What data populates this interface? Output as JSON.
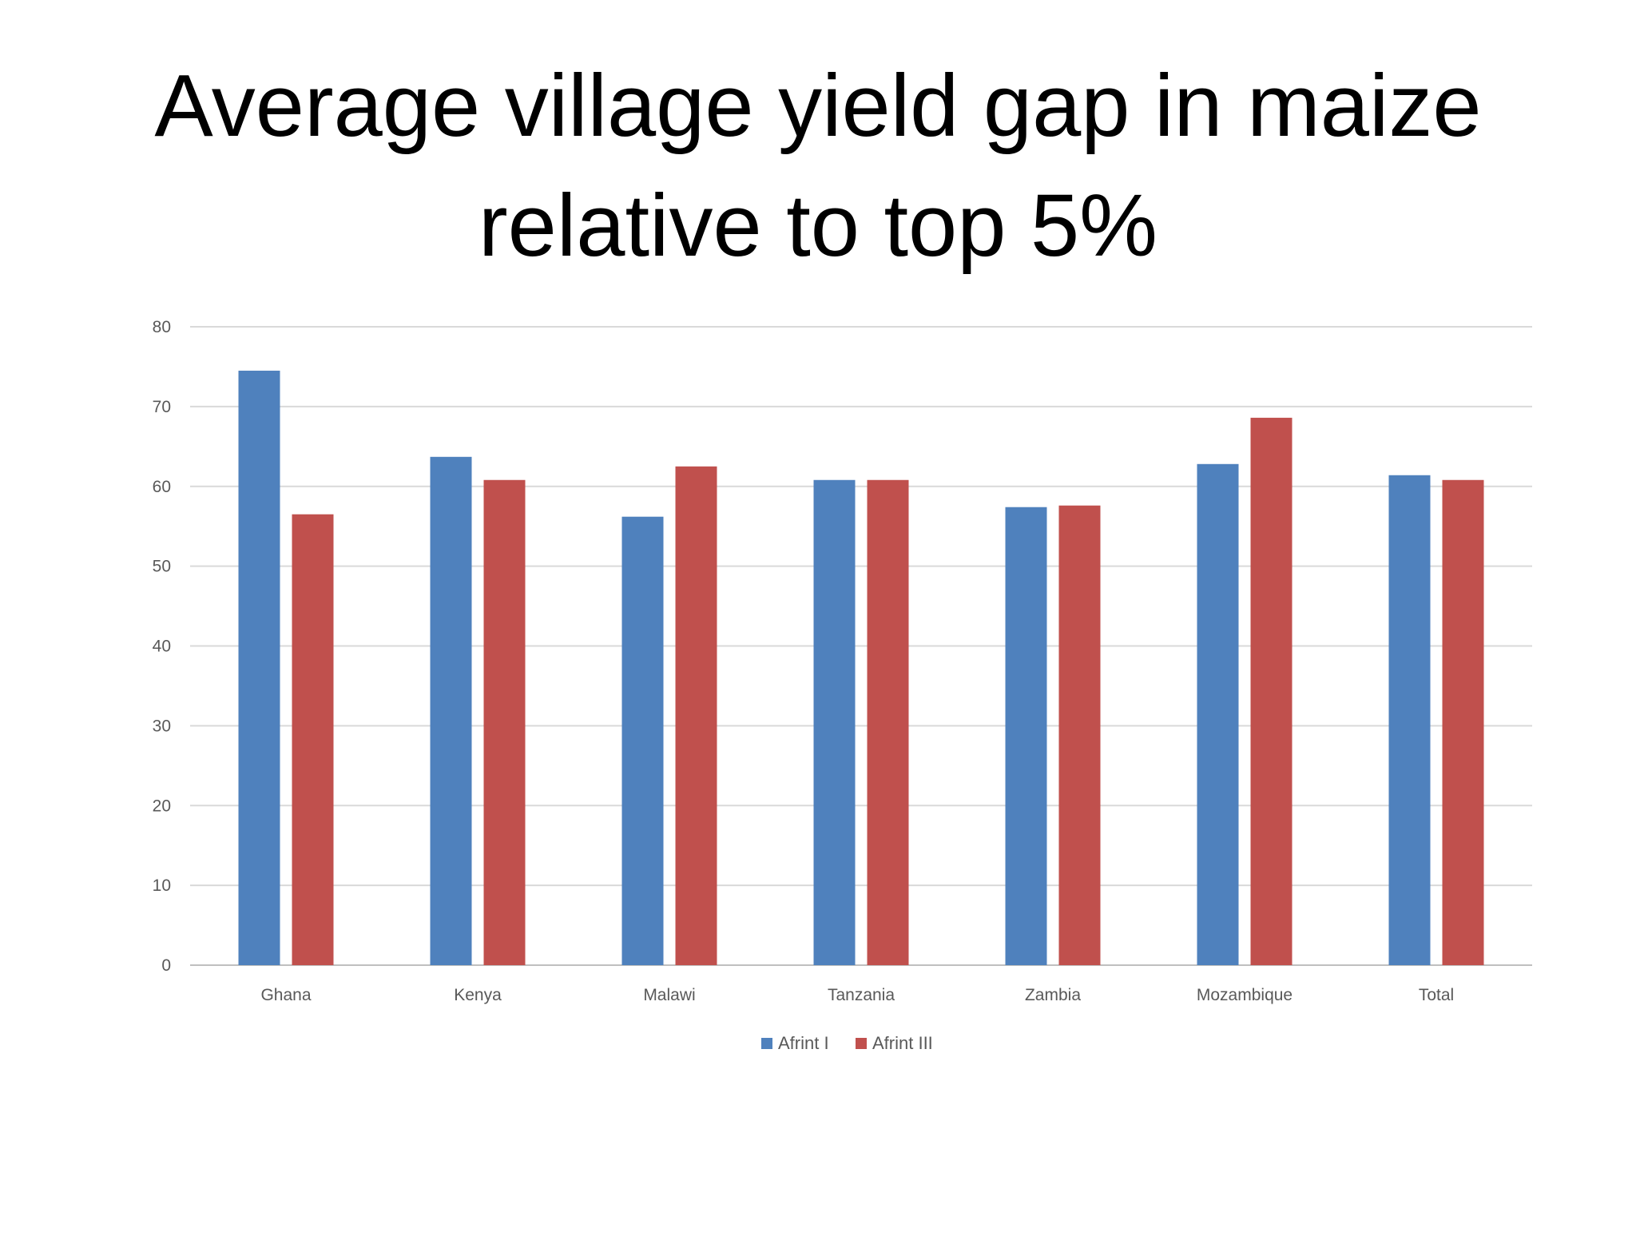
{
  "title_lines": [
    "Average village yield gap in maize",
    "relative to top 5%"
  ],
  "chart_data": {
    "type": "bar",
    "title": "Average village yield gap in maize relative to top 5%",
    "categories": [
      "Ghana",
      "Kenya",
      "Malawi",
      "Tanzania",
      "Zambia",
      "Mozambique",
      "Total"
    ],
    "series": [
      {
        "name": "Afrint I",
        "color": "#4F81BD",
        "values": [
          74.5,
          63.7,
          56.2,
          60.8,
          57.4,
          62.8,
          61.4
        ]
      },
      {
        "name": "Afrint III",
        "color": "#C0504D",
        "values": [
          56.5,
          60.8,
          62.5,
          60.8,
          57.6,
          68.6,
          60.8
        ]
      }
    ],
    "ylim": [
      0,
      80
    ],
    "yticks": [
      0,
      10,
      20,
      30,
      40,
      50,
      60,
      70,
      80
    ],
    "grid": true,
    "legend_position": "bottom",
    "xlabel": "",
    "ylabel": ""
  }
}
